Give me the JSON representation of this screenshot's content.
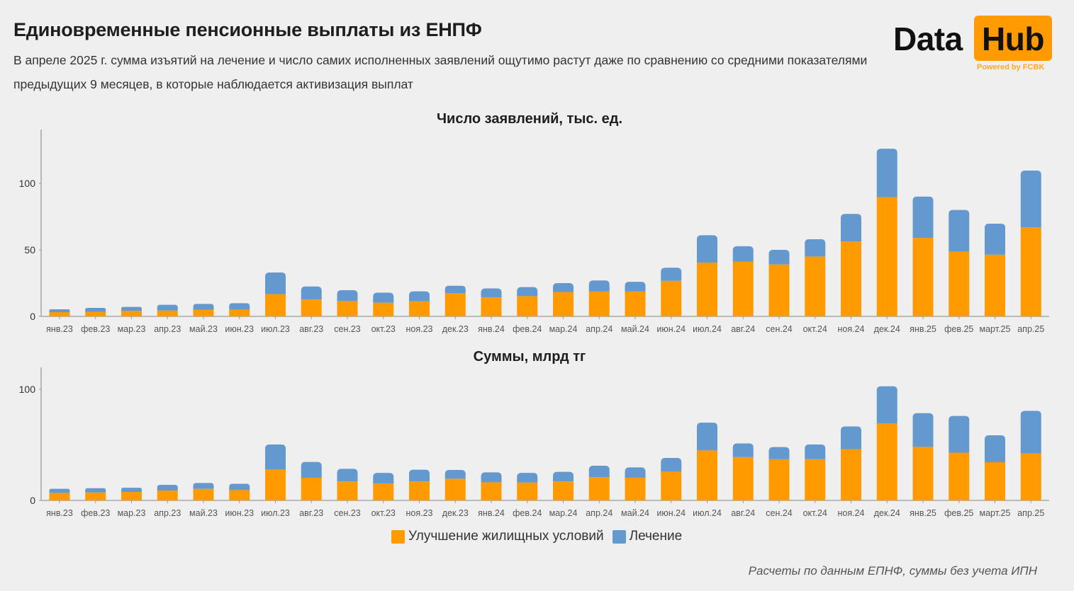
{
  "header": {
    "title": "Единовременные пенсионные выплаты из ЕНПФ",
    "subtitle": "В апреле 2025 г. сумма изъятий на лечение и число самих исполненных заявлений ощутимо растут даже по сравнению со средними показателями предыдущих 9 месяцев, в которые наблюдается активизация выплат"
  },
  "logo": {
    "word1": "Data",
    "word2": "Hub",
    "tagline": "Powered by FCBK"
  },
  "colors": {
    "housing": "#ff9b00",
    "treatment": "#6499cf",
    "axis": "#9a9a9a"
  },
  "legend": {
    "items": [
      {
        "label": "Улучшение жилищных условий",
        "color": "#ff9b00"
      },
      {
        "label": "Лечение",
        "color": "#6499cf"
      }
    ]
  },
  "footnote": "Расчеты по данным ЕПНФ, суммы без учета ИПН",
  "chart_data": [
    {
      "type": "bar",
      "stacked": true,
      "title": "Число заявлений, тыс. ед.",
      "xlabel": "",
      "ylabel": "",
      "ylim": [
        0,
        140
      ],
      "yticks": [
        0,
        50,
        100
      ],
      "grid": false,
      "categories": [
        "янв.23",
        "фев.23",
        "мар.23",
        "апр.23",
        "май.23",
        "июн.23",
        "июл.23",
        "авг.23",
        "сен.23",
        "окт.23",
        "ноя.23",
        "дек.23",
        "янв.24",
        "фев.24",
        "мар.24",
        "апр.24",
        "май.24",
        "июн.24",
        "июл.24",
        "авг.24",
        "сен.24",
        "окт.24",
        "ноя.24",
        "дек.24",
        "янв.25",
        "фев.25",
        "март.25",
        "апр.25"
      ],
      "series": [
        {
          "name": "Улучшение жилищных условий",
          "values": [
            3.2,
            3.4,
            4.2,
            4.4,
            5.0,
            5.1,
            16.7,
            12.6,
            11.5,
            10.3,
            11.3,
            17.4,
            14.2,
            15.2,
            18.3,
            18.7,
            18.7,
            26.7,
            40.4,
            41.0,
            39.0,
            45.0,
            56.3,
            89.6,
            59.0,
            48.6,
            46.4,
            67.0
          ]
        },
        {
          "name": "Лечение",
          "values": [
            2.1,
            3.0,
            2.9,
            4.3,
            4.4,
            4.8,
            16.3,
            9.9,
            8.2,
            7.5,
            7.5,
            5.6,
            6.8,
            6.8,
            6.7,
            8.3,
            7.3,
            9.9,
            20.6,
            11.7,
            11.0,
            13.0,
            20.7,
            36.4,
            31.0,
            31.4,
            23.3,
            42.6
          ]
        }
      ],
      "legend_position": "bottom"
    },
    {
      "type": "bar",
      "stacked": true,
      "title": "Суммы, млрд тг",
      "xlabel": "",
      "ylabel": "",
      "ylim": [
        0,
        120
      ],
      "yticks": [
        0,
        100
      ],
      "grid": false,
      "categories": [
        "янв.23",
        "фев.23",
        "мар.23",
        "апр.23",
        "май.23",
        "июн.23",
        "июл.23",
        "авг.23",
        "сен.23",
        "окт.23",
        "ноя.23",
        "дек.23",
        "янв.24",
        "фев.24",
        "мар.24",
        "апр.24",
        "май.24",
        "июн.24",
        "июл.24",
        "авг.24",
        "сен.24",
        "окт.24",
        "ноя.24",
        "дек.24",
        "янв.25",
        "фев.25",
        "март.25",
        "апр.25"
      ],
      "series": [
        {
          "name": "Улучшение жилищных условий",
          "values": [
            6.8,
            7.2,
            7.6,
            8.9,
            10.4,
            9.3,
            28.0,
            20.4,
            17.0,
            15.3,
            17.0,
            19.5,
            16.3,
            16.1,
            17.0,
            21.0,
            20.4,
            25.9,
            45.0,
            39.0,
            37.0,
            37.1,
            46.2,
            69.4,
            48.2,
            43.0,
            34.4,
            42.2
          ]
        },
        {
          "name": "Лечение",
          "values": [
            3.6,
            3.8,
            3.8,
            5.1,
            5.3,
            5.7,
            22.3,
            14.2,
            11.4,
            9.5,
            10.6,
            7.9,
            8.9,
            8.7,
            8.7,
            10.2,
            9.3,
            12.3,
            25.0,
            12.3,
            11.0,
            13.2,
            20.4,
            33.3,
            30.3,
            33.0,
            24.2,
            38.4
          ]
        }
      ],
      "legend_position": "bottom"
    }
  ]
}
